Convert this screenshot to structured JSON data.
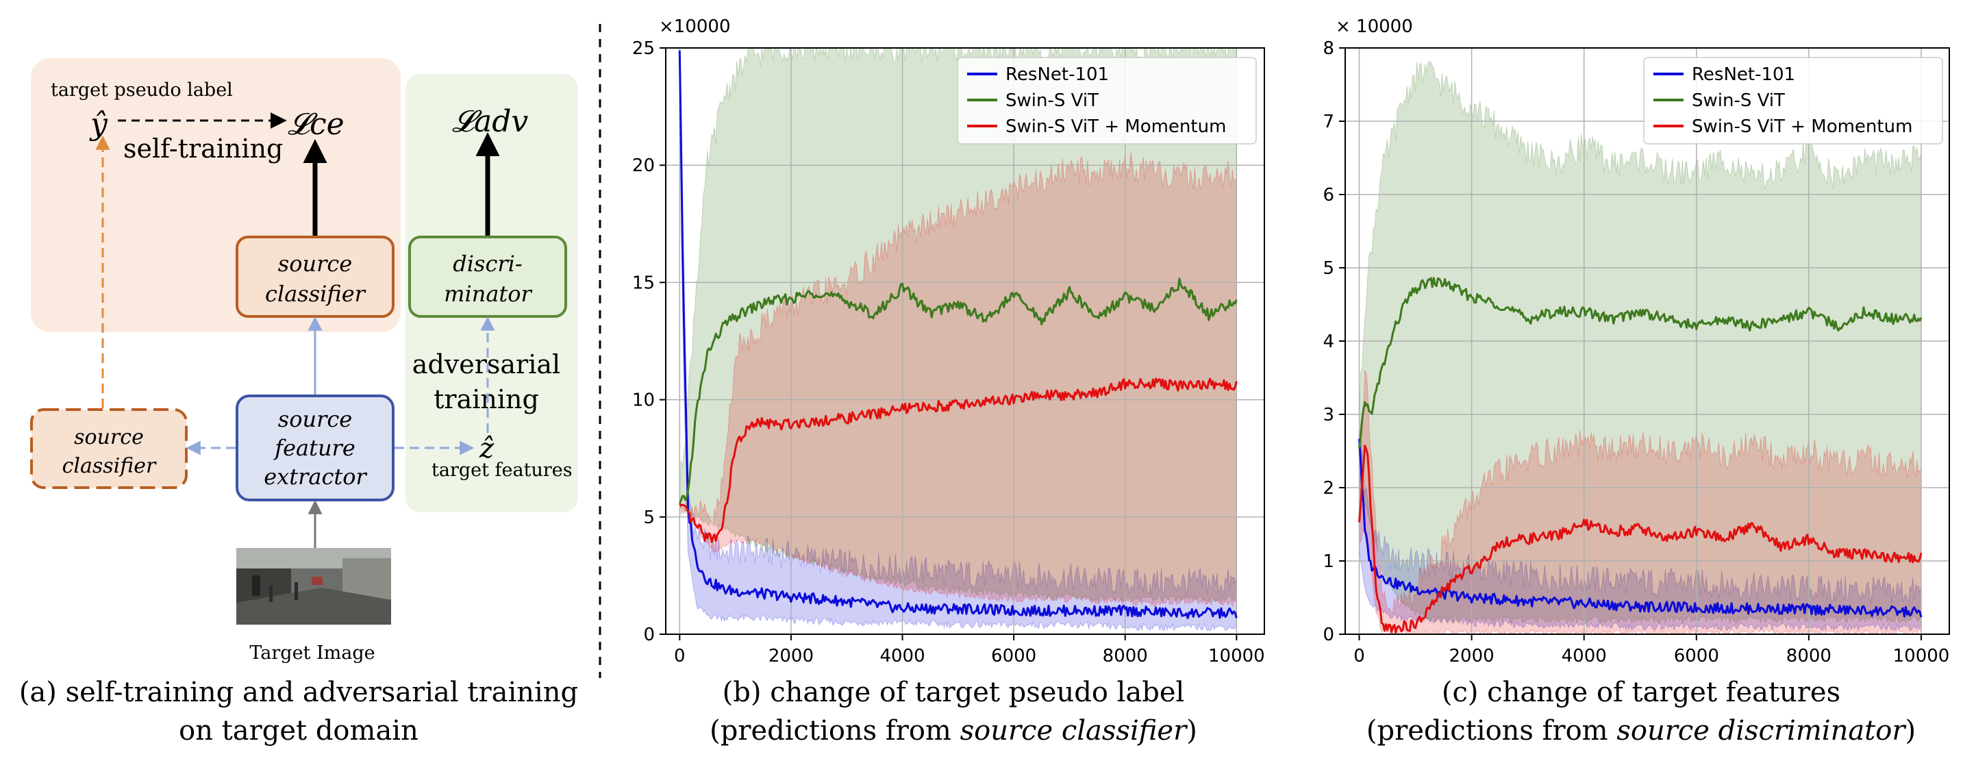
{
  "diagram": {
    "colors": {
      "orange_bg": "#fbeadf",
      "green_bg": "#eef4e6",
      "blue_box": "#dde2f2",
      "orange_border": "#b85f23",
      "green_border": "#5d8a3a",
      "blue_border": "#3b54a5",
      "arrow_blue": "#92a8dc",
      "arrow_orange": "#e08a3c",
      "arrow_gray": "#777777"
    },
    "pseudo_label_caption": "target pseudo label",
    "y_hat": "ŷ",
    "loss_ce": "𝓛ce",
    "loss_adv": "𝓛adv",
    "self_training": "self-training",
    "source_classifier_1": "source",
    "source_classifier_2": "classifier",
    "discriminator_1": "discri-",
    "discriminator_2": "minator",
    "adversarial_1": "adversarial",
    "adversarial_2": "training",
    "feature_extractor_1": "source",
    "feature_extractor_2": "feature",
    "feature_extractor_3": "extractor",
    "z_hat": "ẑ",
    "target_features": "target features",
    "target_image": "Target Image",
    "caption_line1": "(a) self-training and adversarial training",
    "caption_line2": "on target domain"
  },
  "chart_data": [
    {
      "type": "line",
      "title_line1": "(b) change of target pseudo label",
      "title_line2_prefix": "(predictions from ",
      "title_line2_italic": "source classifier",
      "title_line2_suffix": ")",
      "multiplier_label": "×10000",
      "xlim": [
        -250,
        10500
      ],
      "ylim": [
        0,
        25
      ],
      "xticks": [
        "0",
        "2000",
        "4000",
        "6000",
        "8000",
        "10000"
      ],
      "yticks": [
        "0",
        "5",
        "10",
        "15",
        "20",
        "25"
      ],
      "grid": true,
      "legend_position": "top-right",
      "series": [
        {
          "name": "ResNet-101",
          "color": "#0b0bd9",
          "x": [
            0,
            60,
            150,
            300,
            500,
            800,
            1200,
            2000,
            3000,
            4000,
            5000,
            6000,
            7000,
            8000,
            9000,
            10000
          ],
          "y": [
            25,
            15,
            5.3,
            3.1,
            2.3,
            1.9,
            1.8,
            1.6,
            1.4,
            1.1,
            1.1,
            1.0,
            1.0,
            1.0,
            0.9,
            0.9
          ],
          "lower": [
            25,
            12,
            3.5,
            1.2,
            0.8,
            0.7,
            0.7,
            0.6,
            0.5,
            0.5,
            0.4,
            0.4,
            0.4,
            0.3,
            0.3,
            0.3
          ],
          "upper": [
            25,
            18,
            6.0,
            4.2,
            3.8,
            3.5,
            3.6,
            3.4,
            3.0,
            2.8,
            2.6,
            2.5,
            2.4,
            2.2,
            2.2,
            2.2
          ]
        },
        {
          "name": "Swin-S ViT",
          "color": "#3d7a1e",
          "x": [
            0,
            150,
            300,
            500,
            800,
            1200,
            1600,
            2000,
            2500,
            3000,
            3500,
            4000,
            4500,
            5000,
            5500,
            6000,
            6500,
            7000,
            7500,
            8000,
            8500,
            9000,
            9500,
            10000
          ],
          "y": [
            5.5,
            6.0,
            9.5,
            12.0,
            13.2,
            13.8,
            14.2,
            14.3,
            14.6,
            14.2,
            13.6,
            14.8,
            13.7,
            14.1,
            13.4,
            14.5,
            13.4,
            14.6,
            13.5,
            14.4,
            13.9,
            15.0,
            13.6,
            14.2
          ],
          "lower": [
            5.5,
            5.2,
            5.0,
            4.8,
            4.5,
            4.0,
            3.6,
            3.3,
            3.0,
            2.7,
            2.4,
            2.2,
            2.0,
            1.9,
            1.8,
            1.7,
            1.6,
            1.6,
            1.5,
            1.5,
            1.5,
            1.5,
            1.5,
            1.5
          ],
          "upper": [
            6.2,
            10.0,
            15.0,
            20.0,
            23.0,
            24.5,
            25,
            25,
            25,
            25,
            25,
            25,
            25,
            25,
            25,
            25,
            25,
            25,
            25,
            25,
            25,
            25,
            25,
            25
          ]
        },
        {
          "name": "Swin-S ViT + Momentum",
          "color": "#e10f0f",
          "x": [
            0,
            150,
            300,
            450,
            600,
            700,
            800,
            900,
            1000,
            1200,
            1400,
            1600,
            1800,
            2000,
            2500,
            3000,
            3500,
            4000,
            4500,
            5000,
            5500,
            6000,
            6500,
            7000,
            7500,
            8000,
            8500,
            9000,
            9500,
            10000
          ],
          "y": [
            5.5,
            5.1,
            4.6,
            4.2,
            4.1,
            4.3,
            5.0,
            6.5,
            8.0,
            8.7,
            9.0,
            9.0,
            8.9,
            9.0,
            9.1,
            9.2,
            9.4,
            9.6,
            9.7,
            9.8,
            9.9,
            10.0,
            10.2,
            10.2,
            10.3,
            10.7,
            10.7,
            10.6,
            10.7,
            10.6
          ],
          "lower": [
            5.5,
            5.2,
            4.6,
            4.0,
            3.6,
            3.6,
            3.7,
            3.9,
            4.0,
            4.0,
            4.0,
            3.8,
            3.6,
            3.3,
            3.0,
            2.6,
            2.3,
            2.0,
            1.8,
            1.7,
            1.6,
            1.5,
            1.5,
            1.5,
            1.4,
            1.4,
            1.3,
            1.4,
            1.4,
            1.3
          ],
          "upper": [
            5.6,
            5.5,
            5.3,
            5.0,
            4.8,
            5.5,
            7.0,
            9.5,
            12.0,
            12.5,
            13.0,
            13.5,
            13.8,
            14.0,
            14.5,
            15.0,
            16.0,
            17.0,
            17.5,
            18.0,
            18.5,
            19.0,
            19.3,
            19.8,
            19.7,
            20.0,
            19.6,
            19.5,
            19.5,
            19.6
          ]
        }
      ]
    },
    {
      "type": "line",
      "title_line1": "(c) change of  target features",
      "title_line2_prefix": "(predictions from ",
      "title_line2_italic": "source discriminator",
      "title_line2_suffix": ")",
      "multiplier_label": "× 10000",
      "xlim": [
        -250,
        10500
      ],
      "ylim": [
        0,
        8
      ],
      "xticks": [
        "0",
        "2000",
        "4000",
        "6000",
        "8000",
        "10000"
      ],
      "yticks": [
        "0",
        "1",
        "2",
        "3",
        "4",
        "5",
        "6",
        "7",
        "8"
      ],
      "grid": true,
      "legend_position": "top-right",
      "series": [
        {
          "name": "ResNet-101",
          "color": "#0b0bd9",
          "x": [
            0,
            100,
            200,
            400,
            600,
            1000,
            1500,
            2000,
            3000,
            4000,
            5000,
            6000,
            7000,
            8000,
            9000,
            10000
          ],
          "y": [
            2.7,
            1.4,
            0.95,
            0.8,
            0.7,
            0.62,
            0.55,
            0.5,
            0.45,
            0.42,
            0.38,
            0.36,
            0.35,
            0.34,
            0.32,
            0.3
          ],
          "lower": [
            1.2,
            0.6,
            0.4,
            0.3,
            0.25,
            0.2,
            0.18,
            0.15,
            0.13,
            0.12,
            0.1,
            0.1,
            0.1,
            0.1,
            0.1,
            0.1
          ],
          "upper": [
            2.9,
            2.0,
            1.5,
            1.2,
            1.0,
            1.0,
            0.95,
            0.9,
            0.8,
            0.75,
            0.72,
            0.7,
            0.65,
            0.62,
            0.6,
            0.58
          ]
        },
        {
          "name": "Swin-S ViT",
          "color": "#3d7a1e",
          "x": [
            0,
            100,
            200,
            300,
            400,
            600,
            800,
            1000,
            1200,
            1500,
            2000,
            2500,
            3000,
            3500,
            4000,
            4500,
            5000,
            5500,
            6000,
            6500,
            7000,
            7500,
            8000,
            8500,
            9000,
            9500,
            10000
          ],
          "y": [
            2.5,
            3.2,
            3.0,
            3.3,
            3.6,
            4.1,
            4.5,
            4.7,
            4.8,
            4.8,
            4.6,
            4.5,
            4.3,
            4.4,
            4.4,
            4.3,
            4.4,
            4.3,
            4.2,
            4.3,
            4.2,
            4.3,
            4.4,
            4.2,
            4.4,
            4.3,
            4.3
          ],
          "lower": [
            2.0,
            1.8,
            1.5,
            1.2,
            0.9,
            0.6,
            0.4,
            0.3,
            0.2,
            0.2,
            0.2,
            0.2,
            0.2,
            0.2,
            0.2,
            0.2,
            0.2,
            0.2,
            0.2,
            0.2,
            0.2,
            0.2,
            0.2,
            0.2,
            0.2,
            0.2,
            0.2
          ],
          "upper": [
            3.0,
            4.5,
            5.2,
            5.8,
            6.3,
            6.8,
            7.3,
            7.6,
            7.7,
            7.5,
            7.2,
            6.9,
            6.6,
            6.4,
            6.7,
            6.4,
            6.5,
            6.3,
            6.3,
            6.5,
            6.2,
            6.3,
            6.6,
            6.2,
            6.5,
            6.4,
            6.5
          ]
        },
        {
          "name": "Swin-S ViT + Momentum",
          "color": "#e10f0f",
          "x": [
            0,
            100,
            150,
            200,
            300,
            400,
            500,
            700,
            1000,
            1200,
            1500,
            1800,
            2000,
            2200,
            2500,
            3000,
            3500,
            4000,
            4500,
            5000,
            5500,
            6000,
            6500,
            7000,
            7500,
            8000,
            8500,
            9000,
            9500,
            10000
          ],
          "y": [
            1.5,
            2.5,
            2.4,
            1.8,
            0.6,
            0.15,
            0.08,
            0.1,
            0.12,
            0.3,
            0.6,
            0.8,
            0.9,
            1.0,
            1.25,
            1.3,
            1.35,
            1.5,
            1.4,
            1.45,
            1.3,
            1.4,
            1.3,
            1.5,
            1.2,
            1.3,
            1.1,
            1.1,
            1.05,
            1.05
          ],
          "lower": [
            1.2,
            1.5,
            1.3,
            1.0,
            0.3,
            0.05,
            0.02,
            0.02,
            0.02,
            0.02,
            0.02,
            0.02,
            0.02,
            0.02,
            0.02,
            0.02,
            0.02,
            0.02,
            0.02,
            0.02,
            0.02,
            0.02,
            0.02,
            0.02,
            0.02,
            0.02,
            0.02,
            0.02,
            0.02,
            0.02
          ],
          "upper": [
            2.0,
            3.6,
            3.3,
            2.7,
            1.4,
            0.5,
            0.3,
            0.4,
            0.6,
            0.9,
            1.2,
            1.6,
            1.8,
            2.0,
            2.2,
            2.4,
            2.5,
            2.6,
            2.5,
            2.6,
            2.5,
            2.6,
            2.4,
            2.6,
            2.4,
            2.5,
            2.3,
            2.4,
            2.3,
            2.3
          ]
        }
      ]
    }
  ]
}
